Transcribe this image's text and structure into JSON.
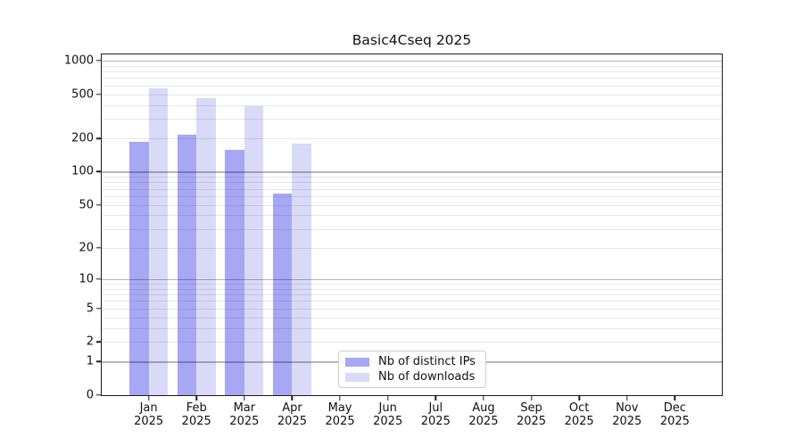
{
  "chart_data": {
    "type": "bar",
    "title": "Basic4Cseq 2025",
    "months": [
      "Jan",
      "Feb",
      "Mar",
      "Apr",
      "May",
      "Jun",
      "Jul",
      "Aug",
      "Sep",
      "Oct",
      "Nov",
      "Dec"
    ],
    "year": "2025",
    "categories": [
      "Jan 2025",
      "Feb 2025",
      "Mar 2025",
      "Apr 2025",
      "May 2025",
      "Jun 2025",
      "Jul 2025",
      "Aug 2025",
      "Sep 2025",
      "Oct 2025",
      "Nov 2025",
      "Dec 2025"
    ],
    "series": [
      {
        "name": "Nb of distinct IPs",
        "color": "#a7a7f4",
        "values": [
          186,
          215,
          158,
          63,
          null,
          null,
          null,
          null,
          null,
          null,
          null,
          null
        ]
      },
      {
        "name": "Nb of downloads",
        "color": "#d9d9f8",
        "values": [
          560,
          458,
          390,
          180,
          null,
          null,
          null,
          null,
          null,
          null,
          null,
          null
        ]
      }
    ],
    "y_ticks": [
      0,
      1,
      2,
      5,
      10,
      20,
      50,
      100,
      200,
      500,
      1000
    ],
    "y_scale": "log1p",
    "ylim": [
      0,
      1000
    ],
    "grid": true,
    "legend_position": "inside plot, lower center-left"
  },
  "colors": {
    "background": "#ffffff",
    "bar_distinct_ips": "#a7a7f4",
    "bar_downloads": "#d9d9f8",
    "grid_major": "rgba(0,0,0,0.28)",
    "grid_minor": "rgba(0,0,0,0.09)",
    "axis": "#1c1c1c",
    "text": "#111111",
    "legend_border": "#cccccc"
  }
}
